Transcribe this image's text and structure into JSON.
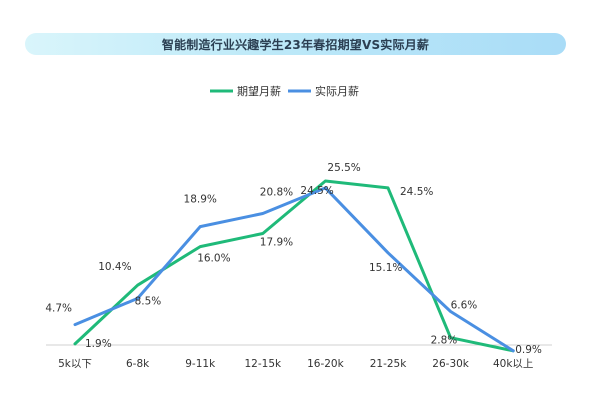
{
  "chart_data": {
    "type": "line",
    "title": "智能制造行业兴趣学生23年春招期望VS实际月薪",
    "categories": [
      "5k以下",
      "6-8k",
      "9-11k",
      "12-15k",
      "16-20k",
      "21-25k",
      "26-30k",
      "40k以上"
    ],
    "series": [
      {
        "name": "期望月薪",
        "color": "#1fba79",
        "values": [
          1.9,
          10.4,
          16.0,
          17.9,
          25.5,
          24.5,
          2.8,
          0.9
        ]
      },
      {
        "name": "实际月薪",
        "color": "#4a8fe2",
        "values": [
          4.7,
          8.5,
          18.9,
          20.8,
          24.5,
          15.1,
          6.6,
          0.9
        ]
      }
    ],
    "data_labels": [
      {
        "text": "1.9%",
        "series": 0,
        "index": 0
      },
      {
        "text": "4.7%",
        "series": 1,
        "index": 0
      },
      {
        "text": "10.4%",
        "series": 0,
        "index": 1
      },
      {
        "text": "8.5%",
        "series": 1,
        "index": 1
      },
      {
        "text": "16.0%",
        "series": 0,
        "index": 2
      },
      {
        "text": "18.9%",
        "series": 1,
        "index": 2
      },
      {
        "text": "17.9%",
        "series": 0,
        "index": 3
      },
      {
        "text": "20.8%",
        "series": 1,
        "index": 3
      },
      {
        "text": "25.5%",
        "series": 0,
        "index": 4
      },
      {
        "text": "24.5%",
        "series": 1,
        "index": 4
      },
      {
        "text": "24.5%",
        "series": 0,
        "index": 5
      },
      {
        "text": "15.1%",
        "series": 1,
        "index": 5
      },
      {
        "text": "2.8%",
        "series": 0,
        "index": 6
      },
      {
        "text": "6.6%",
        "series": 1,
        "index": 6
      },
      {
        "text": "0.9%",
        "series": 1,
        "index": 7
      }
    ],
    "ylim": [
      0,
      30
    ],
    "grid": false,
    "legend_position": "top-center"
  }
}
